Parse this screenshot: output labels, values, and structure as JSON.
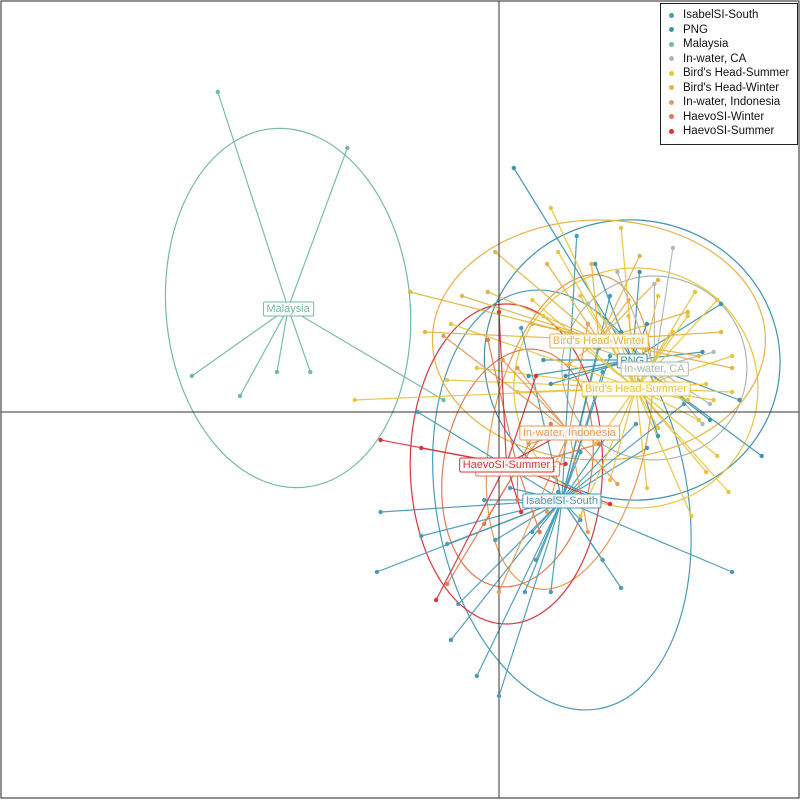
{
  "chart_data": {
    "type": "scatter",
    "title": "",
    "xlabel": "",
    "ylabel": "",
    "xlim": [
      -1,
      1
    ],
    "ylim": [
      -1,
      1
    ],
    "grid": false,
    "legend_position": "top-right",
    "series": [
      {
        "name": "IsabelSI-South",
        "color": "#4a9bb5",
        "label": "IsabelSI-South",
        "centroid": [
          0.17,
          -0.22
        ],
        "ellipse": {
          "rx": 0.34,
          "ry": 0.53,
          "angle": -10
        },
        "points": [
          [
            -0.32,
            -0.25
          ],
          [
            -0.33,
            -0.4
          ],
          [
            -0.13,
            -0.57
          ],
          [
            -0.0,
            -0.71
          ],
          [
            -0.06,
            -0.66
          ],
          [
            -0.11,
            -0.48
          ],
          [
            -0.14,
            -0.33
          ],
          [
            -0.01,
            -0.32
          ],
          [
            0.09,
            -0.3
          ],
          [
            -0.21,
            -0.31
          ],
          [
            -0.04,
            -0.22
          ],
          [
            0.03,
            -0.19
          ],
          [
            0.07,
            -0.45
          ],
          [
            0.14,
            -0.45
          ],
          [
            0.1,
            -0.37
          ],
          [
            0.16,
            -0.2
          ],
          [
            0.22,
            -0.27
          ],
          [
            0.28,
            -0.37
          ],
          [
            0.33,
            -0.44
          ],
          [
            0.22,
            -0.1
          ],
          [
            0.3,
            -0.05
          ],
          [
            0.37,
            -0.03
          ],
          [
            0.27,
            0.16
          ],
          [
            0.3,
            0.14
          ],
          [
            0.28,
            0.1
          ],
          [
            0.06,
            0.21
          ],
          [
            0.63,
            -0.4
          ],
          [
            0.5,
            0.02
          ],
          [
            0.21,
            0.44
          ],
          [
            -0.22,
            0.0
          ],
          [
            0.4,
            -0.09
          ],
          [
            0.3,
            0.29
          ]
        ]
      },
      {
        "name": "PNG",
        "color": "#3f93ad",
        "label": "PNG",
        "centroid": [
          0.36,
          0.13
        ],
        "ellipse": {
          "rx": 0.4,
          "ry": 0.35,
          "angle": 8
        },
        "points": [
          [
            0.04,
            0.61
          ],
          [
            0.33,
            0.2
          ],
          [
            0.14,
            0.07
          ],
          [
            0.71,
            -0.11
          ],
          [
            0.57,
            -0.02
          ],
          [
            0.46,
            0.12
          ],
          [
            0.55,
            0.15
          ],
          [
            0.6,
            0.27
          ],
          [
            0.38,
            0.35
          ],
          [
            0.26,
            0.37
          ],
          [
            0.4,
            0.22
          ],
          [
            0.65,
            0.03
          ],
          [
            0.18,
            0.09
          ],
          [
            0.08,
            0.09
          ],
          [
            0.43,
            -0.06
          ],
          [
            0.12,
            0.13
          ]
        ]
      },
      {
        "name": "Malaysia",
        "color": "#74b9a3",
        "label": "Malaysia",
        "centroid": [
          -0.57,
          0.26
        ],
        "ellipse": {
          "rx": 0.33,
          "ry": 0.45,
          "angle": -5
        },
        "points": [
          [
            -0.76,
            0.8
          ],
          [
            -0.41,
            0.66
          ],
          [
            -0.83,
            0.09
          ],
          [
            -0.7,
            0.04
          ],
          [
            -0.6,
            0.1
          ],
          [
            -0.51,
            0.1
          ],
          [
            -0.15,
            0.03
          ]
        ]
      },
      {
        "name": "In-water, CA",
        "color": "#aeb9b2",
        "label": "In-water, CA",
        "centroid": [
          0.42,
          0.11
        ],
        "ellipse": {
          "rx": 0.25,
          "ry": 0.23,
          "angle": 0
        },
        "points": [
          [
            0.47,
            0.41
          ],
          [
            0.32,
            0.35
          ],
          [
            0.58,
            0.15
          ],
          [
            0.57,
            0.02
          ],
          [
            0.55,
            -0.03
          ],
          [
            0.26,
            0.16
          ],
          [
            0.24,
            0.27
          ],
          [
            0.42,
            0.32
          ]
        ]
      },
      {
        "name": "Bird's Head-Summer",
        "color": "#e8c53e",
        "label": "Bird's Head-Summer",
        "centroid": [
          0.37,
          0.06
        ],
        "ellipse": {
          "rx": 0.33,
          "ry": 0.3,
          "angle": 10
        },
        "points": [
          [
            0.14,
            0.51
          ],
          [
            0.16,
            0.4
          ],
          [
            0.33,
            0.46
          ],
          [
            0.43,
            0.29
          ],
          [
            0.51,
            0.24
          ],
          [
            0.59,
            0.28
          ],
          [
            0.63,
            0.14
          ],
          [
            0.56,
            0.07
          ],
          [
            0.54,
            -0.02
          ],
          [
            0.59,
            -0.11
          ],
          [
            0.62,
            -0.2
          ],
          [
            0.52,
            -0.26
          ],
          [
            0.4,
            -0.19
          ],
          [
            0.3,
            -0.17
          ],
          [
            0.22,
            -0.26
          ],
          [
            0.05,
            0.05
          ],
          [
            -0.06,
            0.11
          ],
          [
            -0.13,
            0.22
          ],
          [
            -0.14,
            0.08
          ],
          [
            -0.39,
            0.03
          ],
          [
            0.43,
            -0.04
          ],
          [
            0.51,
            0.03
          ],
          [
            0.47,
            0.1
          ],
          [
            0.35,
            0.24
          ],
          [
            0.22,
            0.29
          ],
          [
            0.39,
            0.16
          ],
          [
            0.58,
            0.03
          ],
          [
            0.23,
            0.04
          ],
          [
            0.26,
            -0.08
          ],
          [
            0.12,
            0.24
          ],
          [
            0.09,
            0.28
          ],
          [
            0.33,
            0.17
          ],
          [
            0.47,
            0.2
          ],
          [
            0.63,
            0.05
          ],
          [
            0.53,
            0.3
          ],
          [
            0.4,
            0.07
          ],
          [
            0.28,
            0.05
          ],
          [
            0.56,
            -0.15
          ]
        ]
      },
      {
        "name": "Bird's Head-Winter",
        "color": "#e3b448",
        "label": "Bird's Head-Winter",
        "centroid": [
          0.27,
          0.18
        ],
        "ellipse": {
          "rx": 0.45,
          "ry": 0.3,
          "angle": 0
        },
        "points": [
          [
            -0.24,
            0.3
          ],
          [
            -0.1,
            0.29
          ],
          [
            0.09,
            0.22
          ],
          [
            0.25,
            0.37
          ],
          [
            0.51,
            0.25
          ],
          [
            0.54,
            0.14
          ],
          [
            0.63,
            0.11
          ],
          [
            0.43,
            0.33
          ],
          [
            0.38,
            0.39
          ],
          [
            0.19,
            0.12
          ],
          [
            0.13,
            0.37
          ],
          [
            -0.01,
            0.4
          ],
          [
            -0.03,
            0.3
          ],
          [
            -0.2,
            0.2
          ],
          [
            0.6,
            0.2
          ],
          [
            0.35,
            0.28
          ]
        ]
      },
      {
        "name": "In-water, Indonesia",
        "color": "#e99a55",
        "label": "In-water, Indonesia",
        "centroid": [
          0.19,
          -0.05
        ],
        "ellipse": {
          "rx": 0.21,
          "ry": 0.4,
          "angle": 12
        },
        "points": [
          [
            -0.15,
            0.19
          ],
          [
            0.01,
            0.13
          ],
          [
            0.08,
            -0.08
          ],
          [
            0.3,
            -0.06
          ],
          [
            0.32,
            -0.18
          ],
          [
            0.24,
            -0.3
          ],
          [
            0.0,
            -0.45
          ],
          [
            0.13,
            -0.25
          ],
          [
            0.24,
            0.22
          ],
          [
            0.05,
            0.11
          ]
        ]
      },
      {
        "name": "HaevoSI-Winter",
        "color": "#e07a53",
        "label": "HaevoSI-Winter",
        "centroid": [
          0.05,
          -0.14
        ],
        "ellipse": {
          "rx": 0.2,
          "ry": 0.3,
          "angle": 10
        },
        "points": [
          [
            -0.14,
            -0.43
          ],
          [
            0.09,
            -0.06
          ],
          [
            0.05,
            -0.22
          ],
          [
            0.14,
            -0.03
          ],
          [
            0.27,
            -0.08
          ],
          [
            0.11,
            -0.3
          ],
          [
            -0.04,
            -0.28
          ],
          [
            -0.03,
            0.18
          ]
        ]
      },
      {
        "name": "HaevoSI-Summer",
        "color": "#d9343c",
        "label": "HaevoSI-Summer",
        "centroid": [
          0.02,
          -0.13
        ],
        "ellipse": {
          "rx": 0.26,
          "ry": 0.4,
          "angle": 0
        },
        "points": [
          [
            -0.32,
            -0.07
          ],
          [
            -0.21,
            -0.09
          ],
          [
            0.18,
            -0.13
          ],
          [
            0.3,
            -0.23
          ],
          [
            0.2,
            -0.04
          ],
          [
            0.1,
            0.09
          ],
          [
            0.0,
            0.25
          ],
          [
            -0.17,
            -0.47
          ],
          [
            0.06,
            -0.25
          ]
        ]
      }
    ],
    "labels_order": [
      "Bird's Head-Winter",
      "PNG",
      "In-water, CA",
      "Bird's Head-Summer",
      "In-water, Indonesia",
      "HaevoSI-Winter",
      "HaevoSI-Summer",
      "IsabelSI-South"
    ]
  },
  "legend": {
    "items": [
      {
        "label": "IsabelSI-South",
        "color": "#4a9bb5"
      },
      {
        "label": "PNG",
        "color": "#3f93ad"
      },
      {
        "label": "Malaysia",
        "color": "#74b9a3"
      },
      {
        "label": "In-water, CA",
        "color": "#aeb9b2"
      },
      {
        "label": "Bird's Head-Summer",
        "color": "#e8c53e"
      },
      {
        "label": "Bird's Head-Winter",
        "color": "#e3b448"
      },
      {
        "label": "In-water, Indonesia",
        "color": "#e99a55"
      },
      {
        "label": "HaevoSI-Winter",
        "color": "#e07a53"
      },
      {
        "label": "HaevoSI-Summer",
        "color": "#d9343c"
      }
    ]
  }
}
